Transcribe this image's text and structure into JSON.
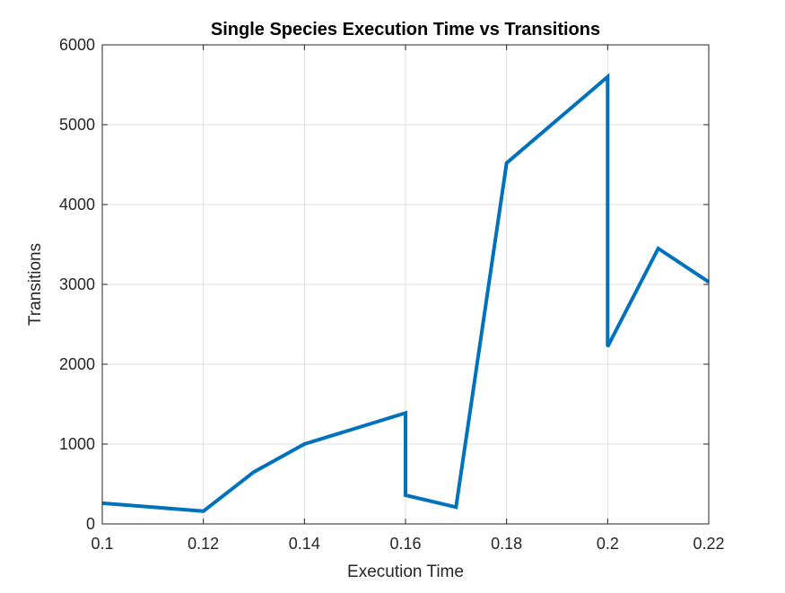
{
  "chart_data": {
    "type": "line",
    "title": "Single Species Execution Time vs Transitions",
    "xlabel": "Execution Time",
    "ylabel": "Transitions",
    "xlim": [
      0.1,
      0.22
    ],
    "ylim": [
      0,
      6000
    ],
    "xticks": [
      0.1,
      0.12,
      0.14,
      0.16,
      0.18,
      0.2,
      0.22
    ],
    "xtick_labels": [
      "0.1",
      "0.12",
      "0.14",
      "0.16",
      "0.18",
      "0.2",
      "0.22"
    ],
    "yticks": [
      0,
      1000,
      2000,
      3000,
      4000,
      5000,
      6000
    ],
    "ytick_labels": [
      "0",
      "1000",
      "2000",
      "3000",
      "4000",
      "5000",
      "6000"
    ],
    "grid": true,
    "series": [
      {
        "color": "#0072BD",
        "x": [
          0.1,
          0.12,
          0.13,
          0.14,
          0.16,
          0.16,
          0.17,
          0.18,
          0.2,
          0.2,
          0.21,
          0.22
        ],
        "y": [
          260,
          160,
          650,
          1000,
          1390,
          360,
          210,
          4520,
          5600,
          2220,
          3450,
          3030
        ]
      }
    ]
  }
}
